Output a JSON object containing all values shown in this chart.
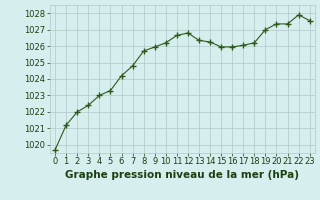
{
  "x": [
    0,
    1,
    2,
    3,
    4,
    5,
    6,
    7,
    8,
    9,
    10,
    11,
    12,
    13,
    14,
    15,
    16,
    17,
    18,
    19,
    20,
    21,
    22,
    23
  ],
  "y": [
    1019.7,
    1021.2,
    1022.0,
    1022.4,
    1023.0,
    1023.3,
    1024.2,
    1024.8,
    1025.7,
    1025.95,
    1026.2,
    1026.65,
    1026.8,
    1026.35,
    1026.25,
    1025.95,
    1025.95,
    1026.05,
    1026.2,
    1027.0,
    1027.35,
    1027.35,
    1027.9,
    1027.55
  ],
  "line_color": "#2d5a1b",
  "marker": "+",
  "marker_size": 5,
  "line_width": 0.8,
  "bg_color": "#d6eeee",
  "grid_color": "#b0c8c8",
  "xlabel": "Graphe pression niveau de la mer (hPa)",
  "xlabel_color": "#1a4010",
  "xlabel_fontsize": 7.5,
  "tick_color": "#1a4010",
  "tick_fontsize": 6,
  "ylim": [
    1019.5,
    1028.5
  ],
  "yticks": [
    1020,
    1021,
    1022,
    1023,
    1024,
    1025,
    1026,
    1027,
    1028
  ],
  "xlim": [
    -0.5,
    23.5
  ],
  "xticks": [
    0,
    1,
    2,
    3,
    4,
    5,
    6,
    7,
    8,
    9,
    10,
    11,
    12,
    13,
    14,
    15,
    16,
    17,
    18,
    19,
    20,
    21,
    22,
    23
  ]
}
